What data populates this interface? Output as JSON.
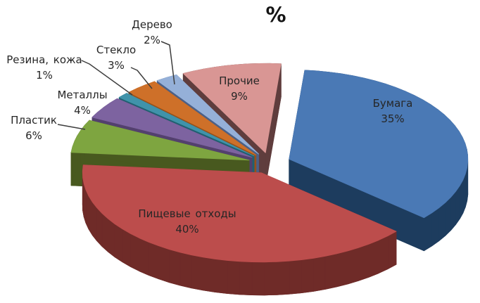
{
  "chart_data": {
    "type": "pie",
    "style": "3d-exploded",
    "title": "%",
    "unit": "%",
    "legend": "none",
    "background": "#ffffff",
    "text_color": "#262626",
    "leader_line_color": "#3d3d3d",
    "start_angle_deg": 85,
    "direction": "clockwise",
    "slices": [
      {
        "label": "Бумага",
        "value": 35,
        "pct": "35%",
        "color": "#4a79b5",
        "side_color": "#1d3c5e",
        "label_inside": true
      },
      {
        "label": "Пищевые отходы",
        "value": 40,
        "pct": "40%",
        "color": "#bc4d4c",
        "side_color": "#6f2b28",
        "label_inside": true
      },
      {
        "label": "Пластик",
        "value": 6,
        "pct": "6%",
        "color": "#7ea540",
        "side_color": "#48591f",
        "label_inside": false
      },
      {
        "label": "Металлы",
        "value": 4,
        "pct": "4%",
        "color": "#7d63a0",
        "side_color": "#53406e",
        "label_inside": false
      },
      {
        "label": "Резина, кожа",
        "value": 1,
        "pct": "1%",
        "color": "#4093aa",
        "side_color": "#206070",
        "label_inside": false
      },
      {
        "label": "Стекло",
        "value": 3,
        "pct": "3%",
        "color": "#ce7029",
        "side_color": "#96511a",
        "label_inside": false
      },
      {
        "label": "Дерево",
        "value": 2,
        "pct": "2%",
        "color": "#95b0d8",
        "side_color": "#4c6086",
        "label_inside": false
      },
      {
        "label": "Прочие",
        "value": 9,
        "pct": "9%",
        "color": "#d99694",
        "side_color": "#5f3d3d",
        "label_inside": true
      }
    ]
  }
}
